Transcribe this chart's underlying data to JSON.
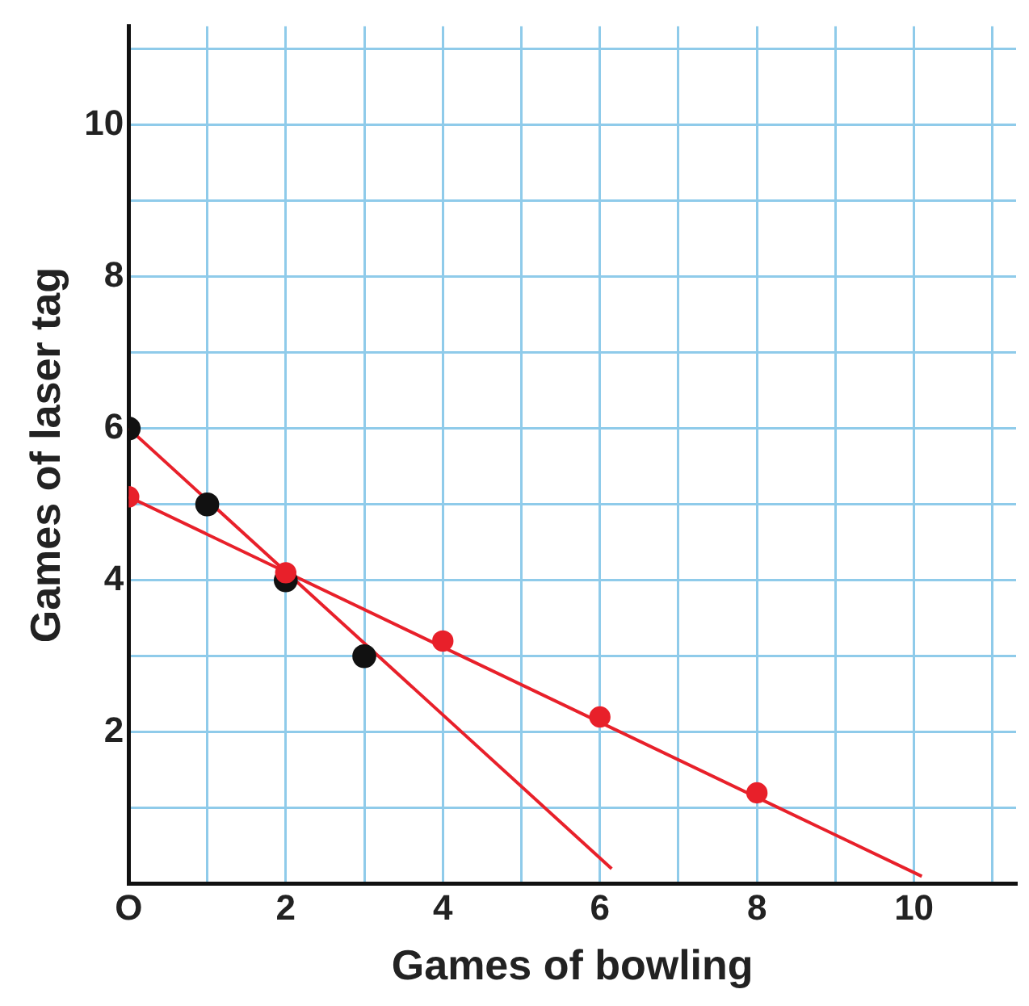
{
  "chart_data": {
    "type": "scatter",
    "xlabel": "Games of bowling",
    "ylabel": "Games of laser tag",
    "xlim": [
      0,
      11.3
    ],
    "ylim": [
      0,
      11.3
    ],
    "xticks": [
      {
        "value": 0,
        "label": "O"
      },
      {
        "value": 1,
        "label": null
      },
      2,
      {
        "value": 3,
        "label": null
      },
      4,
      {
        "value": 5,
        "label": null
      },
      6,
      {
        "value": 7,
        "label": null
      },
      8,
      {
        "value": 9,
        "label": null
      },
      10,
      {
        "value": 11,
        "label": null
      }
    ],
    "yticks": [
      {
        "value": 1,
        "label": null
      },
      2,
      {
        "value": 3,
        "label": null
      },
      4,
      {
        "value": 5,
        "label": null
      },
      6,
      {
        "value": 7,
        "label": null
      },
      8,
      {
        "value": 9,
        "label": null
      },
      10,
      {
        "value": 11,
        "label": null
      }
    ],
    "grid": true,
    "legend": false,
    "marker": "circle",
    "series": [
      {
        "type": "line",
        "marker": "none",
        "color": "#e8202a",
        "x": [
          0,
          6.15
        ],
        "values": [
          6,
          0.2
        ]
      },
      {
        "type": "line",
        "marker": "none",
        "color": "#e8202a",
        "x": [
          0,
          10.1
        ],
        "values": [
          5.1,
          0.1
        ]
      },
      {
        "type": "scatter",
        "color": "#111111",
        "x": [
          0,
          1,
          2,
          3
        ],
        "values": [
          6,
          5,
          4,
          3
        ]
      },
      {
        "type": "scatter",
        "color": "#e8202a",
        "x": [
          0,
          2,
          4,
          6,
          8
        ],
        "values": [
          5.1,
          4.1,
          3.2,
          2.2,
          1.2
        ]
      }
    ]
  }
}
